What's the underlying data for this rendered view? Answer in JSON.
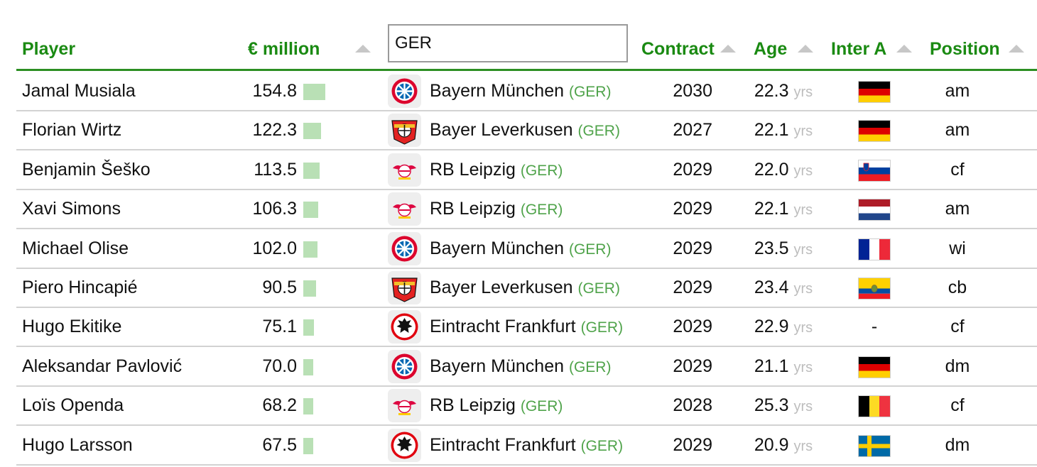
{
  "header": {
    "player": "Player",
    "value": "€ million",
    "contract": "Contract",
    "age": "Age",
    "inter": "Inter A",
    "position": "Position"
  },
  "filter": {
    "value": "GER"
  },
  "age_unit": "yrs",
  "colors": {
    "header_green": "#1a8a12",
    "country_green": "#4fa34a",
    "bar_green": "#b9e0b5",
    "rule_green": "#2c8f22"
  },
  "rows": [
    {
      "name": "Jamal Musiala",
      "value": "154.8",
      "club": "Bayern München",
      "country": "(GER)",
      "contract": "2030",
      "age": "22.3",
      "flag": "Germany",
      "position": "am",
      "logo": "bayern-munchen-logo"
    },
    {
      "name": "Florian Wirtz",
      "value": "122.3",
      "club": "Bayer Leverkusen",
      "country": "(GER)",
      "contract": "2027",
      "age": "22.1",
      "flag": "Germany",
      "position": "am",
      "logo": "bayer-leverkusen-logo"
    },
    {
      "name": "Benjamin Šeško",
      "value": "113.5",
      "club": "RB Leipzig",
      "country": "(GER)",
      "contract": "2029",
      "age": "22.0",
      "flag": "Slovenia",
      "position": "cf",
      "logo": "rb-leipzig-logo"
    },
    {
      "name": "Xavi Simons",
      "value": "106.3",
      "club": "RB Leipzig",
      "country": "(GER)",
      "contract": "2029",
      "age": "22.1",
      "flag": "Netherlands",
      "position": "am",
      "logo": "rb-leipzig-logo"
    },
    {
      "name": "Michael Olise",
      "value": "102.0",
      "club": "Bayern München",
      "country": "(GER)",
      "contract": "2029",
      "age": "23.5",
      "flag": "France",
      "position": "wi",
      "logo": "bayern-munchen-logo"
    },
    {
      "name": "Piero Hincapié",
      "value": "90.5",
      "club": "Bayer Leverkusen",
      "country": "(GER)",
      "contract": "2029",
      "age": "23.4",
      "flag": "Ecuador",
      "position": "cb",
      "logo": "bayer-leverkusen-logo"
    },
    {
      "name": "Hugo Ekitike",
      "value": "75.1",
      "club": "Eintracht Frankfurt",
      "country": "(GER)",
      "contract": "2029",
      "age": "22.9",
      "flag": "-",
      "position": "cf",
      "logo": "eintracht-frankfurt-logo"
    },
    {
      "name": "Aleksandar Pavlović",
      "value": "70.0",
      "club": "Bayern München",
      "country": "(GER)",
      "contract": "2029",
      "age": "21.1",
      "flag": "Germany",
      "position": "dm",
      "logo": "bayern-munchen-logo"
    },
    {
      "name": "Loïs Openda",
      "value": "68.2",
      "club": "RB Leipzig",
      "country": "(GER)",
      "contract": "2028",
      "age": "25.3",
      "flag": "Belgium",
      "position": "cf",
      "logo": "rb-leipzig-logo"
    },
    {
      "name": "Hugo Larsson",
      "value": "67.5",
      "club": "Eintracht Frankfurt",
      "country": "(GER)",
      "contract": "2029",
      "age": "20.9",
      "flag": "Sweden",
      "position": "dm",
      "logo": "eintracht-frankfurt-logo"
    }
  ]
}
